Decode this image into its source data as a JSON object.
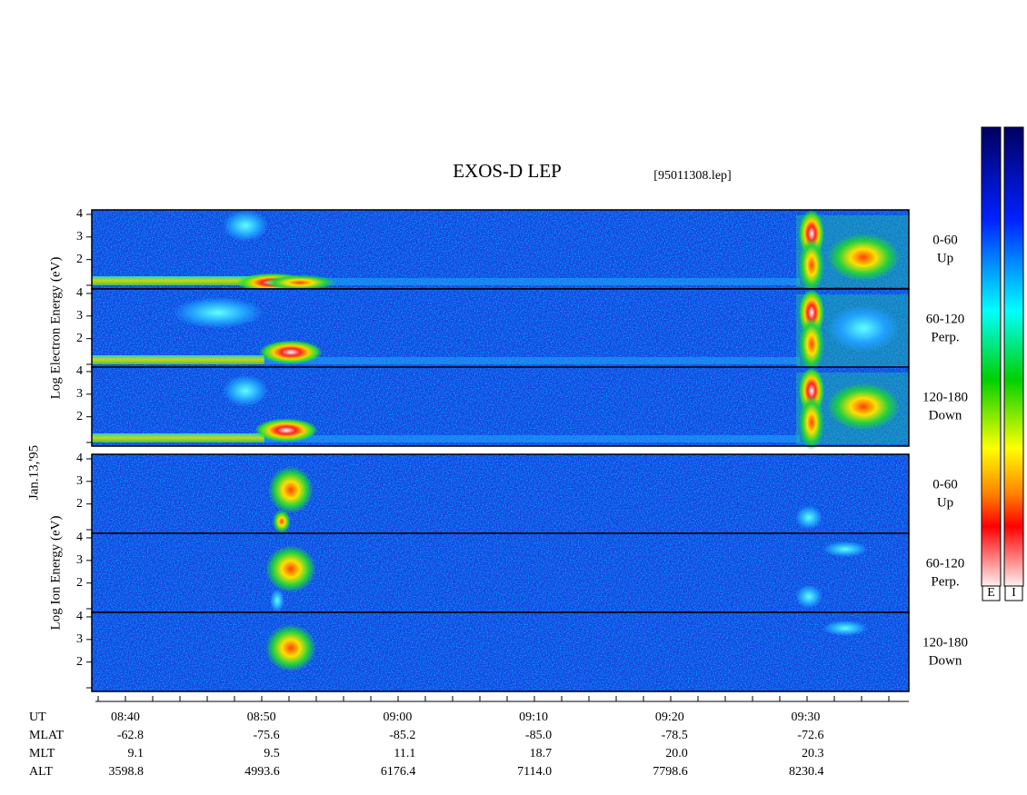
{
  "header": {
    "title": "EXOS-D LEP",
    "file": "[95011308.lep]",
    "date": "Jan.13,'95"
  },
  "energy_axis": {
    "ylim": [
      0.7,
      4.2
    ],
    "yticks": [
      2,
      3,
      4
    ]
  },
  "groups": [
    {
      "ylabel": "Log Electron Energy (eV)",
      "panels": [
        {
          "range": "0-60",
          "direction": "Up"
        },
        {
          "range": "60-120",
          "direction": "Perp."
        },
        {
          "range": "120-180",
          "direction": "Down"
        }
      ]
    },
    {
      "ylabel": "Log Ion Energy (eV)",
      "panels": [
        {
          "range": "0-60",
          "direction": "Up"
        },
        {
          "range": "60-120",
          "direction": "Perp."
        },
        {
          "range": "120-180",
          "direction": "Down"
        }
      ]
    }
  ],
  "ephemeris": {
    "labels": [
      "UT",
      "MLAT",
      "MLT",
      "ALT"
    ],
    "rows": [
      [
        "08:40",
        "08:50",
        "09:00",
        "09:10",
        "09:20",
        "09:30"
      ],
      [
        "-62.8",
        "-75.6",
        "-85.2",
        "-85.0",
        "-78.5",
        "-72.6"
      ],
      [
        "9.1",
        "9.5",
        "11.1",
        "18.7",
        "20.0",
        "20.3"
      ],
      [
        "3598.8",
        "4993.6",
        "6176.4",
        "7114.0",
        "7798.6",
        "8230.4"
      ]
    ]
  },
  "colorbars": [
    "E",
    "I"
  ]
}
